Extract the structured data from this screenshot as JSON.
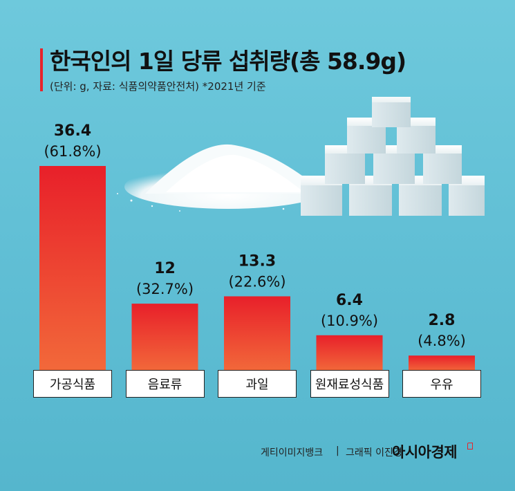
{
  "header": {
    "title": "한국인의 1일 당류 섭취량(총 58.9g)",
    "subtitle": "(단위: g, 자료: 식품의약품안전처) *2021년 기준"
  },
  "chart_data": {
    "type": "bar",
    "title": "한국인의 1일 당류 섭취량(총 58.9g)",
    "subtitle": "(단위: g, 자료: 식품의약품안전처) *2021년 기준",
    "categories": [
      "가공식품",
      "음료류",
      "과일",
      "원재료성식품",
      "우유"
    ],
    "values": [
      36.4,
      12,
      13.3,
      6.4,
      2.8
    ],
    "value_labels": [
      "36.4",
      "12",
      "13.3",
      "6.4",
      "2.8"
    ],
    "percent_labels": [
      "(61.8%)",
      "(32.7%)",
      "(22.6%)",
      "(10.9%)",
      "(4.8%)"
    ],
    "ylim": [
      0,
      36.4
    ],
    "grid": false,
    "colors": {
      "bar_top": "#e8202a",
      "bar_bottom": "#f2693a"
    }
  },
  "footer": {
    "credit_left": "게티이미지뱅크",
    "separator": "|",
    "credit_right": "그래픽 이진경",
    "brand": "아시아경제"
  }
}
